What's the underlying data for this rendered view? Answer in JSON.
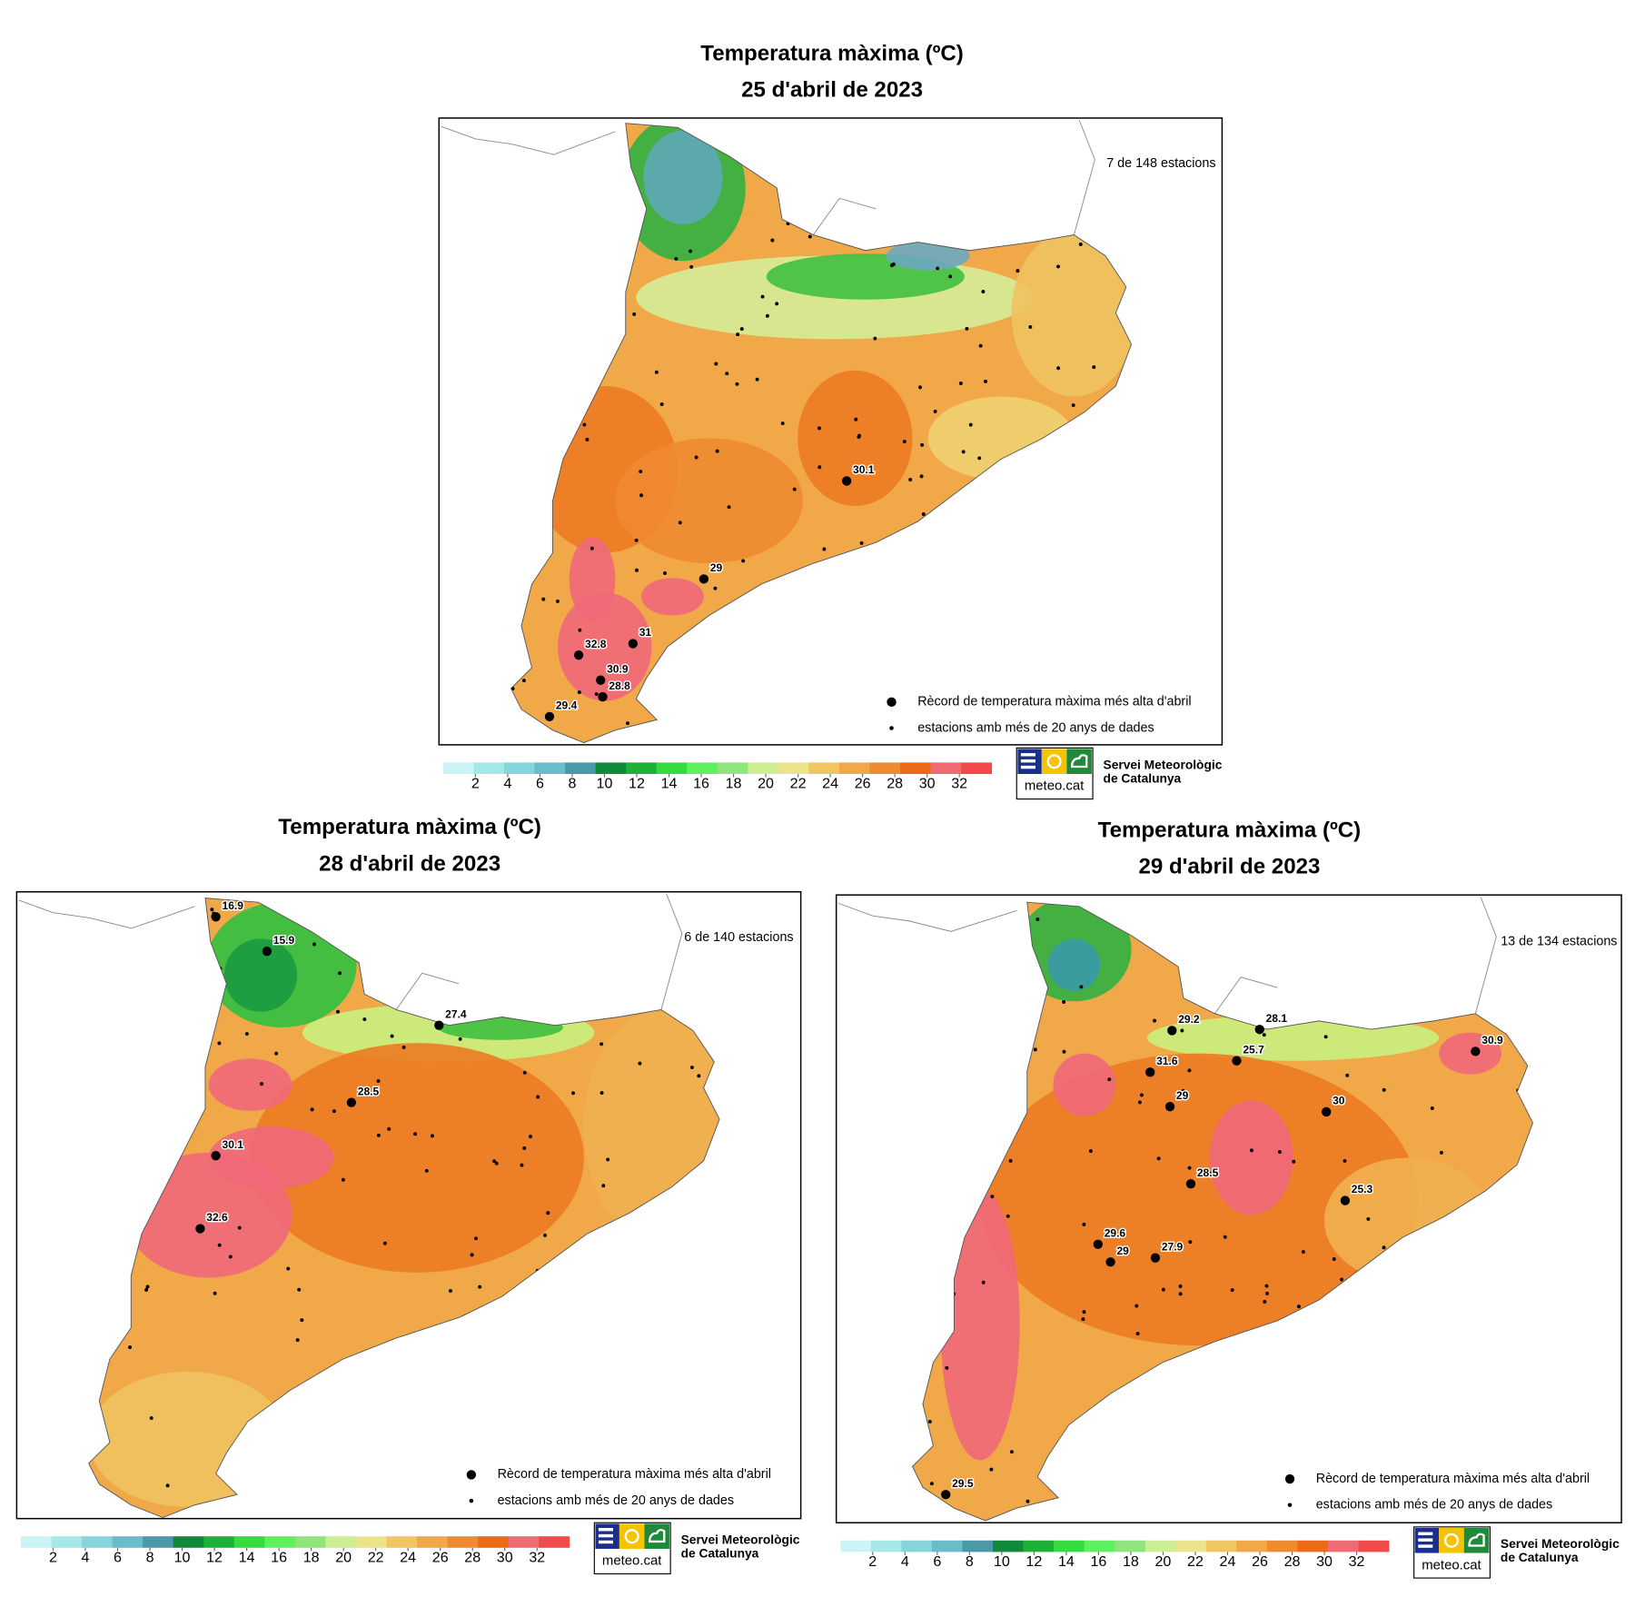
{
  "maps": [
    {
      "title": "Temperatura màxima (ºC)",
      "date": "25 d'abril de 2023",
      "stations": "7 de 148 estacions",
      "records": [
        30.1,
        29,
        31,
        32.8,
        30.9,
        28.8,
        29.4
      ],
      "legend": {
        "record": "Rècord de temperatura màxima més alta d'abril",
        "station": "estacions amb més de 20 anys de dades"
      },
      "colorbar": {
        "range": [
          0,
          34
        ],
        "ticks": [
          2,
          4,
          6,
          8,
          10,
          12,
          14,
          16,
          18,
          20,
          22,
          24,
          26,
          28,
          30,
          32
        ],
        "colors": [
          "#cbf5f5",
          "#a6e8e8",
          "#86d4dc",
          "#68bccc",
          "#4a98aa",
          "#108a3a",
          "#1fb038",
          "#35dc3e",
          "#5ef05e",
          "#8fe47c",
          "#cdee92",
          "#ece48a",
          "#f0c562",
          "#f0a848",
          "#ee8a30",
          "#ec6a18",
          "#f06a74",
          "#f04a4a"
        ]
      },
      "logo": {
        "brand": "meteo.cat",
        "org": [
          "Servei Meteorològic",
          "de Catalunya"
        ]
      }
    },
    {
      "title": "Temperatura màxima (ºC)",
      "date": "28 d'abril de 2023",
      "stations": "6 de 140 estacions",
      "records": [
        16.9,
        15.9,
        27.4,
        28.5,
        30.1,
        32.6
      ],
      "legend": {
        "record": "Rècord de temperatura màxima més alta d'abril",
        "station": "estacions amb més de 20 anys de dades"
      },
      "colorbar": {
        "range": [
          0,
          34
        ],
        "ticks": [
          2,
          4,
          6,
          8,
          10,
          12,
          14,
          16,
          18,
          20,
          22,
          24,
          26,
          28,
          30,
          32
        ],
        "colors": [
          "#cbf5f5",
          "#a6e8e8",
          "#86d4dc",
          "#68bccc",
          "#4a98aa",
          "#108a3a",
          "#1fb038",
          "#35dc3e",
          "#5ef05e",
          "#8fe47c",
          "#cdee92",
          "#ece48a",
          "#f0c562",
          "#f0a848",
          "#ee8a30",
          "#ec6a18",
          "#f06a74",
          "#f04a4a"
        ]
      },
      "logo": {
        "brand": "meteo.cat",
        "org": [
          "Servei Meteorològic",
          "de Catalunya"
        ]
      }
    },
    {
      "title": "Temperatura màxima (ºC)",
      "date": "29 d'abril de 2023",
      "stations": "13 de 134 estacions",
      "records": [
        29.2,
        28.1,
        31.6,
        25.7,
        29,
        30,
        30.9,
        28.5,
        25.3,
        29.6,
        29,
        27.9,
        29.5
      ],
      "legend": {
        "record": "Rècord de temperatura màxima més alta d'abril",
        "station": "estacions amb més de 20 anys de dades"
      },
      "colorbar": {
        "range": [
          0,
          34
        ],
        "ticks": [
          2,
          4,
          6,
          8,
          10,
          12,
          14,
          16,
          18,
          20,
          22,
          24,
          26,
          28,
          30,
          32
        ],
        "colors": [
          "#cbf5f5",
          "#a6e8e8",
          "#86d4dc",
          "#68bccc",
          "#4a98aa",
          "#108a3a",
          "#1fb038",
          "#35dc3e",
          "#5ef05e",
          "#8fe47c",
          "#cdee92",
          "#ece48a",
          "#f0c562",
          "#f0a848",
          "#ee8a30",
          "#ec6a18",
          "#f06a74",
          "#f04a4a"
        ]
      },
      "logo": {
        "brand": "meteo.cat",
        "org": [
          "Servei Meteorològic",
          "de Catalunya"
        ]
      }
    }
  ]
}
